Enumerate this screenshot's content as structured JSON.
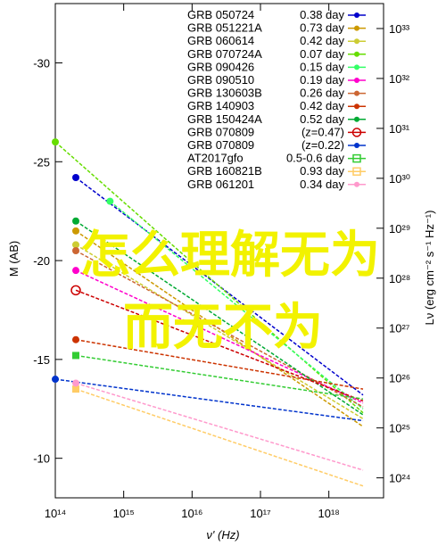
{
  "chart_data": {
    "type": "line",
    "xlabel": "ν' (Hz)",
    "ylabel_left": "M (AB)",
    "ylabel_right": "Lν (erg cm⁻² s⁻¹ Hz⁻¹)",
    "x_log_range": [
      14,
      18.8
    ],
    "m_range": [
      -8,
      -33
    ],
    "l_log_range": [
      23.6,
      33.5
    ],
    "x_ticks": [
      {
        "exp": 14,
        "label": "10¹⁴"
      },
      {
        "exp": 15,
        "label": "10¹⁵"
      },
      {
        "exp": 16,
        "label": "10¹⁶"
      },
      {
        "exp": 17,
        "label": "10¹⁷"
      },
      {
        "exp": 18,
        "label": "10¹⁸"
      }
    ],
    "m_ticks": [
      {
        "v": -30,
        "label": "-30"
      },
      {
        "v": -25,
        "label": "-25"
      },
      {
        "v": -20,
        "label": "-20"
      },
      {
        "v": -15,
        "label": "-15"
      },
      {
        "v": -10,
        "label": "-10"
      }
    ],
    "l_ticks": [
      {
        "exp": 33,
        "label": "10³³"
      },
      {
        "exp": 32,
        "label": "10³²"
      },
      {
        "exp": 31,
        "label": "10³¹"
      },
      {
        "exp": 30,
        "label": "10³⁰"
      },
      {
        "exp": 29,
        "label": "10²⁹"
      },
      {
        "exp": 28,
        "label": "10²⁸"
      },
      {
        "exp": 27,
        "label": "10²⁷"
      },
      {
        "exp": 26,
        "label": "10²⁶"
      },
      {
        "exp": 25,
        "label": "10²⁵"
      },
      {
        "exp": 24,
        "label": "10²⁴"
      }
    ],
    "legend_position": "top-right",
    "series": [
      {
        "name": "GRB 050724",
        "label": "0.38 day",
        "color": "#0000cc",
        "marker": "dot",
        "points": [
          [
            14.3,
            -24.2
          ],
          [
            18.5,
            -13.2
          ]
        ]
      },
      {
        "name": "GRB 051221A",
        "label": "0.73 day",
        "color": "#cc9900",
        "marker": "dot",
        "points": [
          [
            14.3,
            -21.5
          ],
          [
            18.5,
            -11.6
          ]
        ]
      },
      {
        "name": "GRB 060614",
        "label": "0.42 day",
        "color": "#cccc33",
        "marker": "dot",
        "points": [
          [
            14.3,
            -20.8
          ],
          [
            18.5,
            -12.0
          ]
        ]
      },
      {
        "name": "GRB 070724A",
        "label": "0.07 day",
        "color": "#66dd00",
        "marker": "dot",
        "points": [
          [
            14.0,
            -26.0
          ],
          [
            18.5,
            -12.3
          ]
        ]
      },
      {
        "name": "GRB 090426",
        "label": "0.15 day",
        "color": "#33ff66",
        "marker": "dot",
        "points": [
          [
            14.8,
            -23.0
          ],
          [
            18.5,
            -12.5
          ]
        ]
      },
      {
        "name": "GRB 090510",
        "label": "0.19 day",
        "color": "#ff00cc",
        "marker": "dot",
        "points": [
          [
            14.3,
            -19.5
          ],
          [
            18.5,
            -12.8
          ]
        ]
      },
      {
        "name": "GRB 130603B",
        "label": "0.26 day",
        "color": "#cc6633",
        "marker": "dot",
        "points": [
          [
            14.3,
            -20.5
          ],
          [
            18.5,
            -12.6
          ]
        ]
      },
      {
        "name": "GRB 140903",
        "label": "0.42 day",
        "color": "#cc3300",
        "marker": "dot",
        "points": [
          [
            14.3,
            -16.0
          ],
          [
            18.5,
            -13.5
          ]
        ]
      },
      {
        "name": "GRB 150424A",
        "label": "0.52 day",
        "color": "#00aa33",
        "marker": "dot",
        "points": [
          [
            14.3,
            -22.0
          ],
          [
            18.5,
            -12.2
          ]
        ]
      },
      {
        "name": "GRB 070809",
        "label": "(z=0.47)",
        "color": "#cc0000",
        "marker": "circle-plus",
        "points": [
          [
            14.3,
            -18.5
          ],
          [
            18.5,
            -12.9
          ]
        ]
      },
      {
        "name": "GRB 070809",
        "label": "(z=0.22)",
        "color": "#0033cc",
        "marker": "dot",
        "points": [
          [
            14.0,
            -14.0
          ],
          [
            18.5,
            -11.9
          ]
        ]
      },
      {
        "name": "AT2017gfo",
        "label": "0.5-0.6 day",
        "color": "#33cc33",
        "marker": "square",
        "points": [
          [
            14.3,
            -15.2
          ],
          [
            18.5,
            -13.0
          ]
        ]
      },
      {
        "name": "GRB 160821B",
        "label": "0.93 day",
        "color": "#ffcc66",
        "marker": "square",
        "points": [
          [
            14.3,
            -13.5
          ],
          [
            18.5,
            -8.6
          ]
        ]
      },
      {
        "name": "GRB 061201",
        "label": "0.34 day",
        "color": "#ff99cc",
        "marker": "dot",
        "points": [
          [
            14.3,
            -13.8
          ],
          [
            18.5,
            -9.4
          ]
        ]
      }
    ]
  },
  "overlay": {
    "line1": "怎么理解无为",
    "line2": "而无不为"
  }
}
